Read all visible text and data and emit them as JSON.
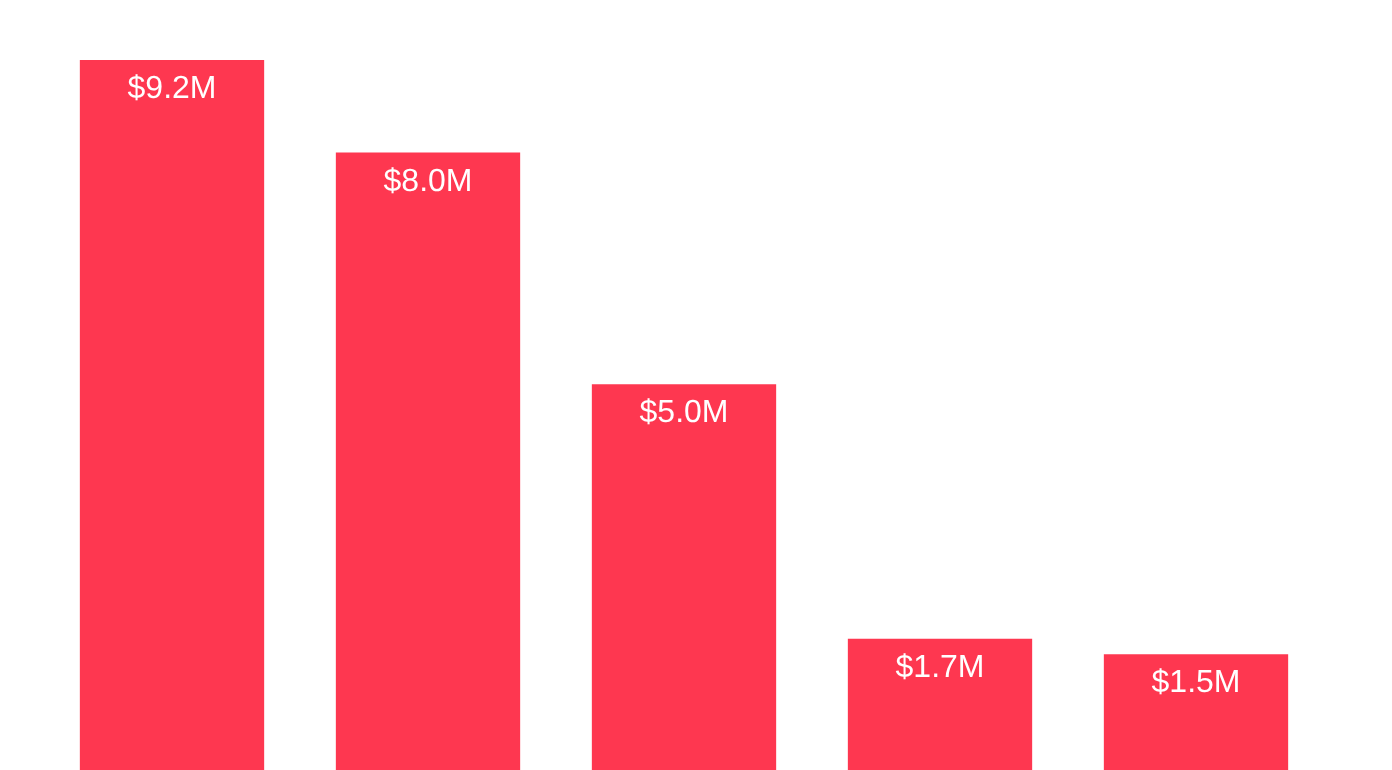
{
  "chart_data": {
    "type": "bar",
    "categories": [
      null,
      null,
      null,
      null,
      null
    ],
    "values": [
      9.2,
      8.0,
      5.0,
      1.7,
      1.5
    ],
    "value_labels": [
      "$9.2M",
      "$8.0M",
      "$5.0M",
      "$1.7M",
      "$1.5M"
    ],
    "color": "#fe3750"
  }
}
